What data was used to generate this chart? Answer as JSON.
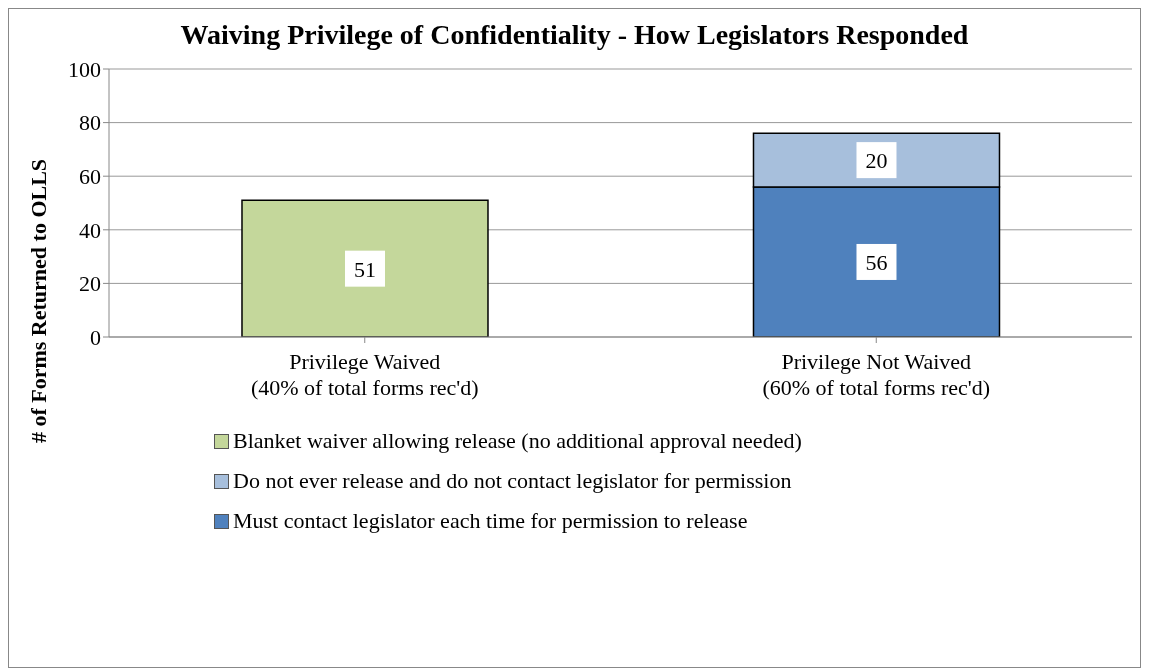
{
  "chart_data": {
    "type": "bar",
    "title": "Waiving Privilege of Confidentiality - How Legislators Responded",
    "ylabel": "# of Forms Returned to OLLS",
    "categories": [
      "Privilege Waived\n(40% of total forms rec'd)",
      "Privilege Not Waived\n(60% of total forms rec'd)"
    ],
    "stacked": true,
    "series": [
      {
        "name": "Must contact legislator each time for permission to release",
        "color": "#4f81bd",
        "values": [
          null,
          56
        ]
      },
      {
        "name": "Do not ever release and do not contact legislator for permission",
        "color": "#a7bfdc",
        "values": [
          null,
          20
        ]
      },
      {
        "name": "Blanket waiver allowing release (no additional approval needed)",
        "color": "#c4d79b",
        "values": [
          51,
          null
        ]
      }
    ],
    "ylim": [
      0,
      100
    ],
    "yticks": [
      0,
      20,
      40,
      60,
      80,
      100
    ],
    "grid": "y",
    "legend": "bottom",
    "data_labels": true
  }
}
